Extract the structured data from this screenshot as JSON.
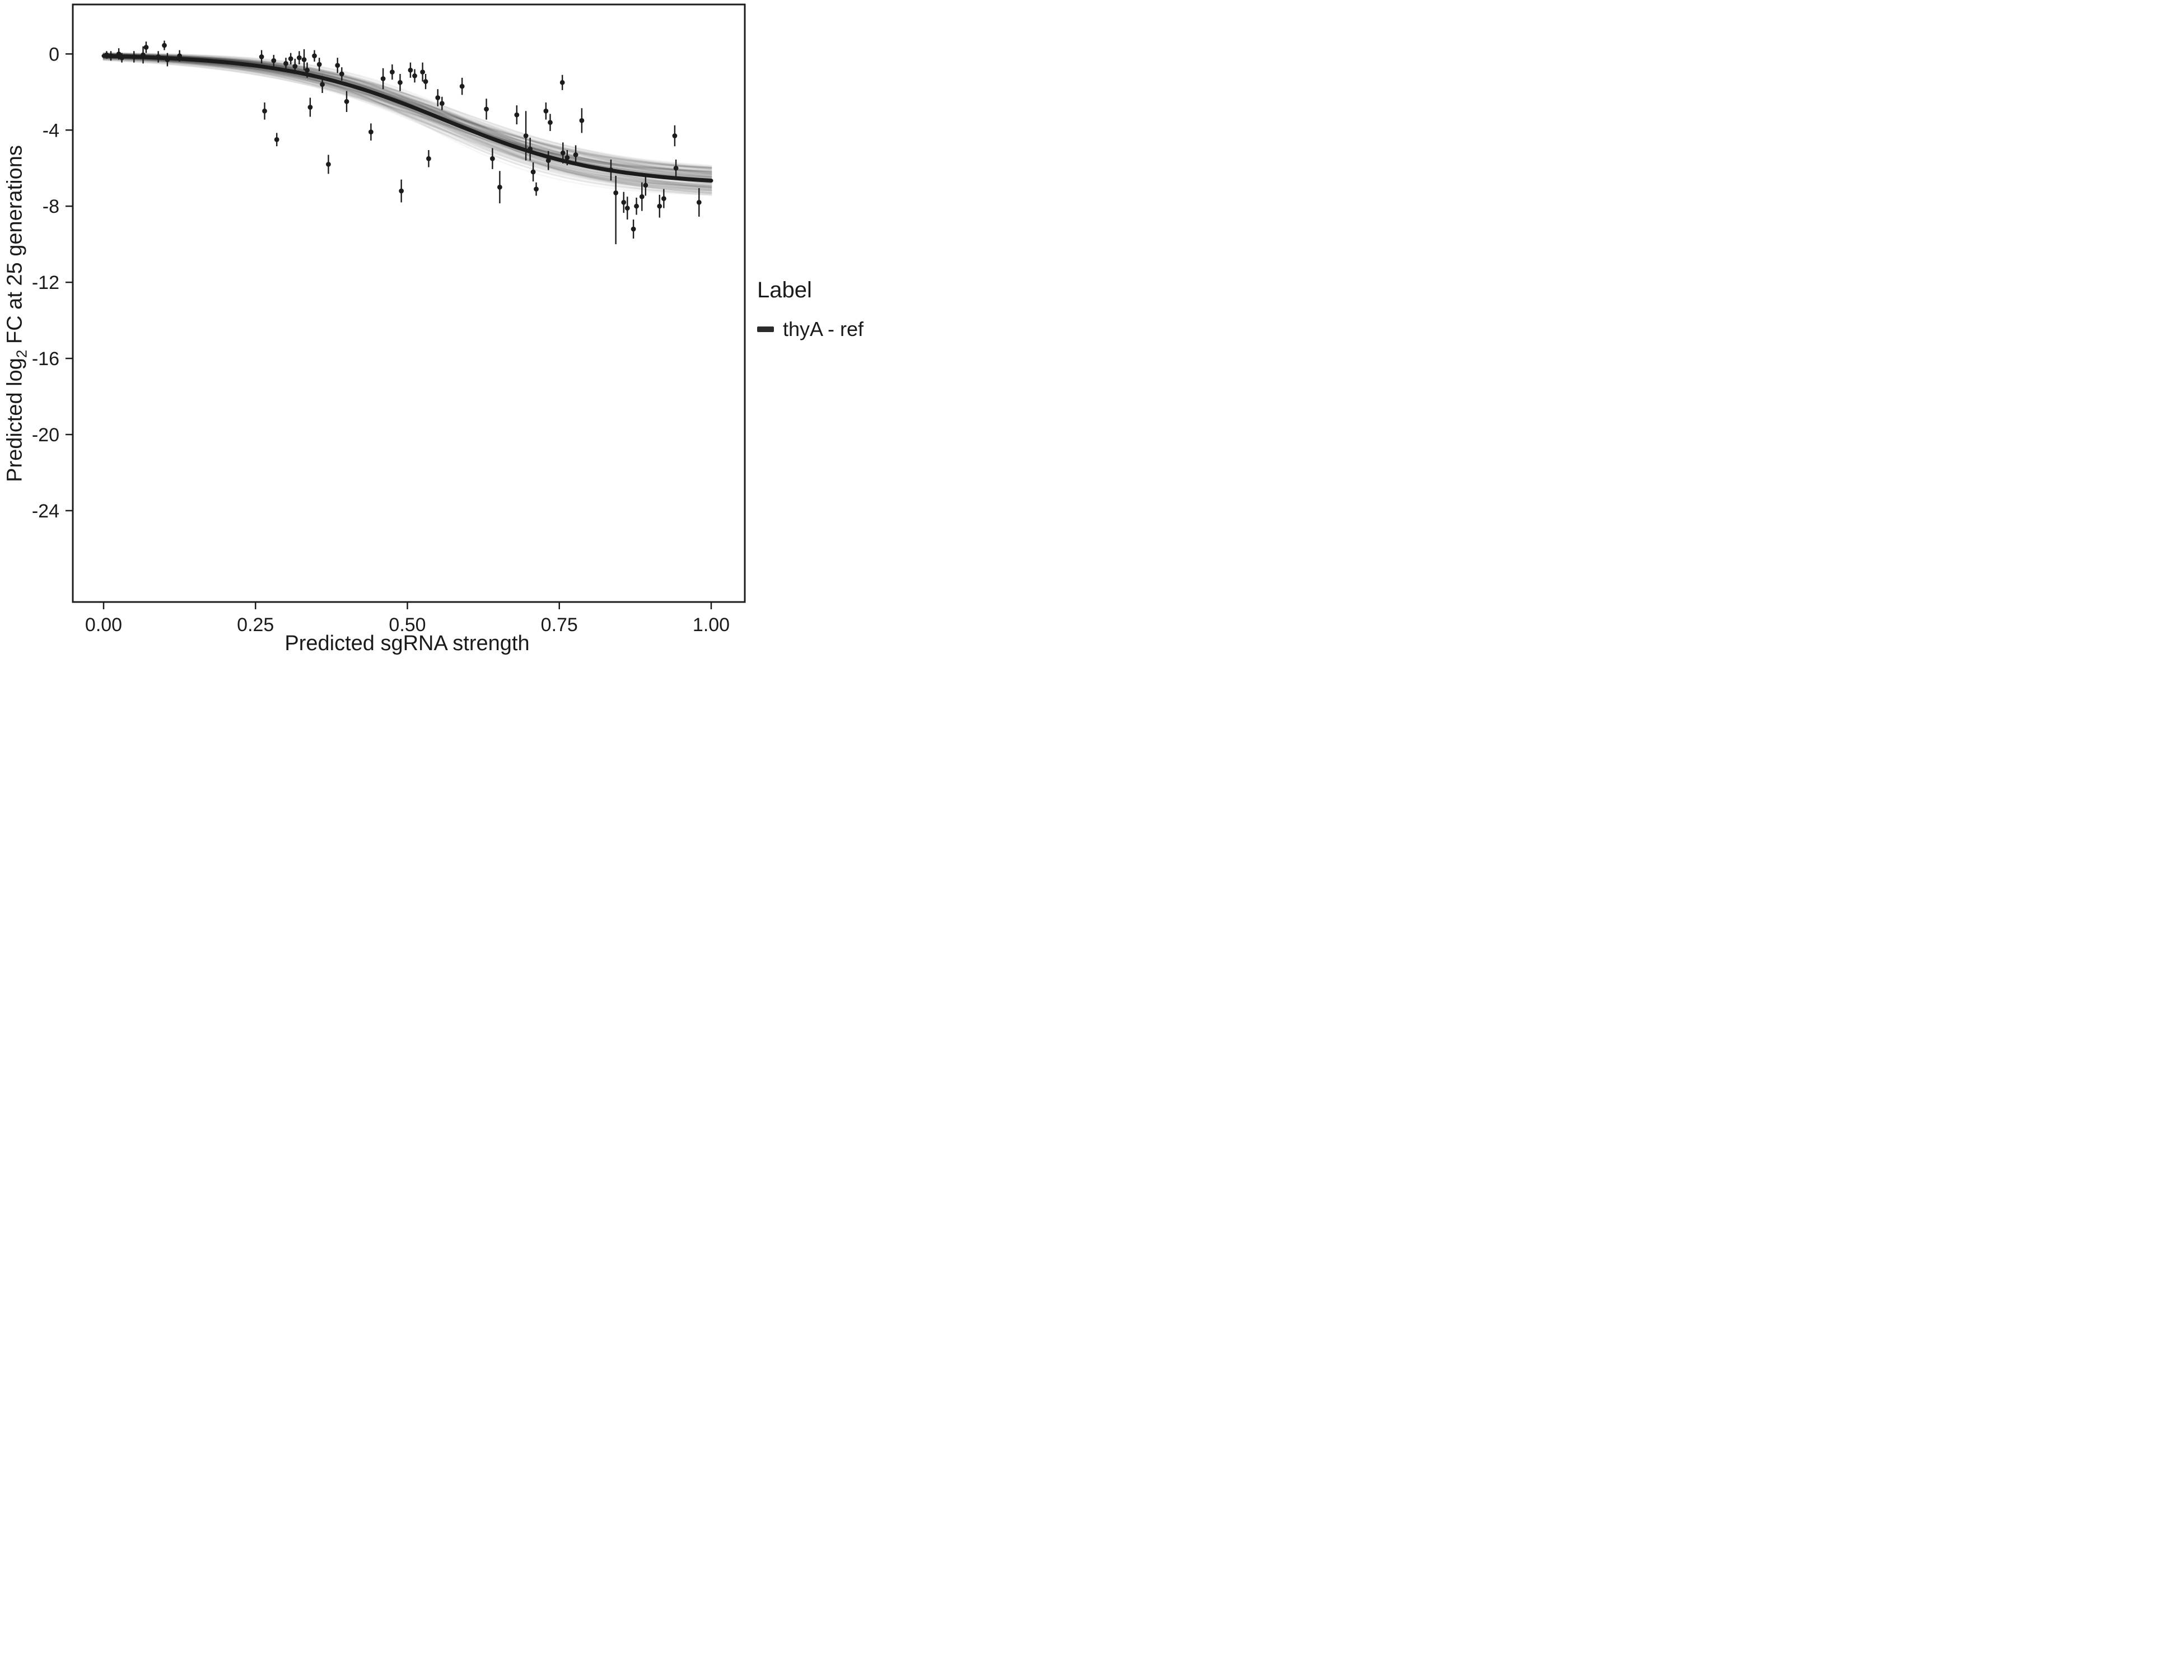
{
  "chart_data": {
    "type": "scatter",
    "title": "",
    "xlabel": "Predicted sgRNA strength",
    "ylabel": {
      "pre": "Predicted  log",
      "sub": "2",
      "post": " FC at 25 generations"
    },
    "xlim": [
      0,
      1
    ],
    "ylim": [
      -28.8,
      2.6
    ],
    "grid": false,
    "x_ticks": [
      {
        "v": 0.0,
        "label": "0.00"
      },
      {
        "v": 0.25,
        "label": "0.25"
      },
      {
        "v": 0.5,
        "label": "0.50"
      },
      {
        "v": 0.75,
        "label": "0.75"
      },
      {
        "v": 1.0,
        "label": "1.00"
      }
    ],
    "y_ticks": [
      {
        "v": 0,
        "label": "0"
      },
      {
        "v": -4,
        "label": "-4"
      },
      {
        "v": -8,
        "label": "-8"
      },
      {
        "v": -12,
        "label": "-12"
      },
      {
        "v": -16,
        "label": "-16"
      },
      {
        "v": -20,
        "label": "-20"
      },
      {
        "v": -24,
        "label": "-24"
      }
    ],
    "curve": {
      "model": "sigmoid",
      "L": -6.9,
      "x0": 0.56,
      "k": 7.5
    },
    "uncertainty": {
      "type": "posterior-draws-band",
      "draws": 160,
      "jitter_L": 1.5,
      "jitter_x0": 0.07,
      "jitter_k": 3.0,
      "jitter_offset": 0.22
    },
    "point_color": "#1c1c1c",
    "curve_color": "#1c1c1c",
    "band_color": "rgba(0,0,0,0.035)",
    "points": [
      [
        0.005,
        -0.05,
        0.2,
        0.2
      ],
      [
        0.012,
        -0.1,
        0.25,
        0.25
      ],
      [
        0.025,
        0.0,
        0.3,
        0.3
      ],
      [
        0.03,
        -0.2,
        0.25,
        0.25
      ],
      [
        0.05,
        -0.15,
        0.3,
        0.3
      ],
      [
        0.065,
        -0.05,
        0.45,
        0.45
      ],
      [
        0.07,
        0.35,
        0.3,
        0.3
      ],
      [
        0.09,
        -0.15,
        0.3,
        0.3
      ],
      [
        0.1,
        0.45,
        0.25,
        0.25
      ],
      [
        0.105,
        -0.3,
        0.35,
        0.35
      ],
      [
        0.125,
        -0.1,
        0.3,
        0.3
      ],
      [
        0.26,
        -0.15,
        0.35,
        0.35
      ],
      [
        0.265,
        -3.0,
        0.45,
        0.45
      ],
      [
        0.28,
        -0.35,
        0.3,
        0.3
      ],
      [
        0.285,
        -4.5,
        0.35,
        0.35
      ],
      [
        0.3,
        -0.5,
        0.3,
        0.3
      ],
      [
        0.308,
        -0.25,
        0.3,
        0.3
      ],
      [
        0.315,
        -0.65,
        0.4,
        0.4
      ],
      [
        0.322,
        -0.2,
        0.35,
        0.35
      ],
      [
        0.33,
        -0.3,
        0.55,
        0.55
      ],
      [
        0.335,
        -0.85,
        0.4,
        0.4
      ],
      [
        0.34,
        -2.8,
        0.5,
        0.5
      ],
      [
        0.347,
        -0.1,
        0.3,
        0.3
      ],
      [
        0.355,
        -0.55,
        0.35,
        0.35
      ],
      [
        0.36,
        -1.6,
        0.45,
        0.45
      ],
      [
        0.37,
        -5.8,
        0.5,
        0.5
      ],
      [
        0.385,
        -0.6,
        0.4,
        0.4
      ],
      [
        0.392,
        -1.05,
        0.35,
        0.35
      ],
      [
        0.4,
        -2.5,
        0.55,
        0.55
      ],
      [
        0.44,
        -4.1,
        0.45,
        0.45
      ],
      [
        0.46,
        -1.3,
        0.55,
        0.55
      ],
      [
        0.475,
        -0.95,
        0.4,
        0.4
      ],
      [
        0.488,
        -1.5,
        0.45,
        0.45
      ],
      [
        0.49,
        -7.2,
        0.6,
        0.6
      ],
      [
        0.505,
        -0.85,
        0.4,
        0.4
      ],
      [
        0.512,
        -1.15,
        0.35,
        0.35
      ],
      [
        0.525,
        -0.95,
        0.5,
        0.5
      ],
      [
        0.53,
        -1.45,
        0.4,
        0.4
      ],
      [
        0.535,
        -5.5,
        0.45,
        0.45
      ],
      [
        0.55,
        -2.3,
        0.45,
        0.45
      ],
      [
        0.557,
        -2.6,
        0.35,
        0.35
      ],
      [
        0.59,
        -1.7,
        0.45,
        0.45
      ],
      [
        0.63,
        -2.9,
        0.55,
        0.55
      ],
      [
        0.64,
        -5.5,
        0.55,
        0.55
      ],
      [
        0.652,
        -7.0,
        0.85,
        0.85
      ],
      [
        0.68,
        -3.2,
        0.5,
        0.5
      ],
      [
        0.695,
        -4.3,
        1.3,
        1.3
      ],
      [
        0.702,
        -5.0,
        0.6,
        0.6
      ],
      [
        0.707,
        -6.2,
        0.5,
        0.5
      ],
      [
        0.712,
        -7.1,
        0.35,
        0.35
      ],
      [
        0.728,
        -3.0,
        0.45,
        0.45
      ],
      [
        0.735,
        -3.6,
        0.45,
        0.45
      ],
      [
        0.732,
        -5.6,
        0.5,
        0.5
      ],
      [
        0.755,
        -1.5,
        0.4,
        0.4
      ],
      [
        0.756,
        -5.2,
        0.55,
        0.55
      ],
      [
        0.763,
        -5.45,
        0.4,
        0.4
      ],
      [
        0.777,
        -5.3,
        0.5,
        0.5
      ],
      [
        0.787,
        -3.5,
        0.65,
        0.65
      ],
      [
        0.835,
        -6.1,
        0.55,
        0.55
      ],
      [
        0.843,
        -7.3,
        2.7,
        0.9
      ],
      [
        0.856,
        -7.8,
        0.55,
        0.55
      ],
      [
        0.862,
        -8.1,
        0.6,
        0.6
      ],
      [
        0.872,
        -9.2,
        0.5,
        0.5
      ],
      [
        0.877,
        -8.0,
        0.45,
        0.45
      ],
      [
        0.886,
        -7.5,
        0.75,
        0.75
      ],
      [
        0.892,
        -6.9,
        0.55,
        0.55
      ],
      [
        0.915,
        -8.0,
        0.6,
        0.6
      ],
      [
        0.922,
        -7.6,
        0.5,
        0.5
      ],
      [
        0.94,
        -4.3,
        0.55,
        0.55
      ],
      [
        0.942,
        -6.0,
        0.45,
        0.45
      ],
      [
        0.98,
        -7.8,
        0.75,
        0.75
      ]
    ],
    "legend": {
      "title": "Label",
      "position": "right",
      "items": [
        {
          "label": "thyA - ref",
          "color": "#2b2b2b",
          "key": "thick-line"
        }
      ]
    }
  }
}
